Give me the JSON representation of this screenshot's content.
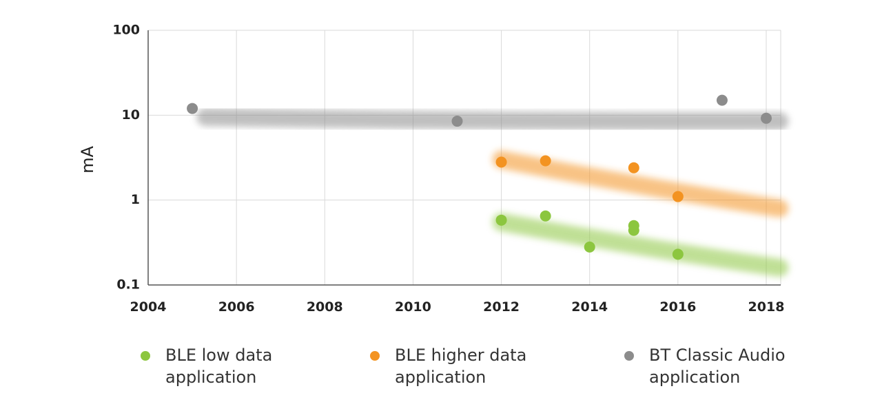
{
  "chart_data": {
    "type": "scatter",
    "title": "",
    "xlabel": "",
    "ylabel": "mA",
    "yscale": "log",
    "xlim": [
      2004,
      2018.3
    ],
    "ylim": [
      0.1,
      100
    ],
    "xticks": [
      "2004",
      "2006",
      "2008",
      "2010",
      "2012",
      "2014",
      "2016",
      "2018"
    ],
    "yticks": [
      "0.1",
      "1",
      "10",
      "100"
    ],
    "grid": true,
    "legend_position": "bottom",
    "series": [
      {
        "name": "BLE low data application",
        "color": "#8cc63f",
        "trend": {
          "x": [
            2012,
            2018.3
          ],
          "y": [
            0.55,
            0.16
          ]
        },
        "points": [
          {
            "x": 2012,
            "y": 0.58
          },
          {
            "x": 2013,
            "y": 0.65
          },
          {
            "x": 2014,
            "y": 0.28
          },
          {
            "x": 2015,
            "y": 0.5
          },
          {
            "x": 2015,
            "y": 0.44
          },
          {
            "x": 2016,
            "y": 0.23
          }
        ]
      },
      {
        "name": "BLE higher data application",
        "color": "#f39321",
        "trend": {
          "x": [
            2012,
            2018.3
          ],
          "y": [
            3.0,
            0.8
          ]
        },
        "points": [
          {
            "x": 2012,
            "y": 2.8
          },
          {
            "x": 2013,
            "y": 2.9
          },
          {
            "x": 2015,
            "y": 2.4
          },
          {
            "x": 2016,
            "y": 1.1
          }
        ]
      },
      {
        "name": "BT Classic Audio application",
        "color": "#8c8c8c",
        "trend": {
          "x": [
            2005.3,
            2018.3
          ],
          "y": [
            9.5,
            8.5
          ]
        },
        "points": [
          {
            "x": 2005,
            "y": 12
          },
          {
            "x": 2011,
            "y": 8.5
          },
          {
            "x": 2017,
            "y": 15
          },
          {
            "x": 2018,
            "y": 9.2
          }
        ]
      }
    ]
  },
  "legend": [
    {
      "line1": "BLE low data",
      "line2": "application",
      "color": "#8cc63f"
    },
    {
      "line1": "BLE higher data",
      "line2": "application",
      "color": "#f39321"
    },
    {
      "line1": "BT Classic Audio",
      "line2": "application",
      "color": "#8c8c8c"
    }
  ]
}
